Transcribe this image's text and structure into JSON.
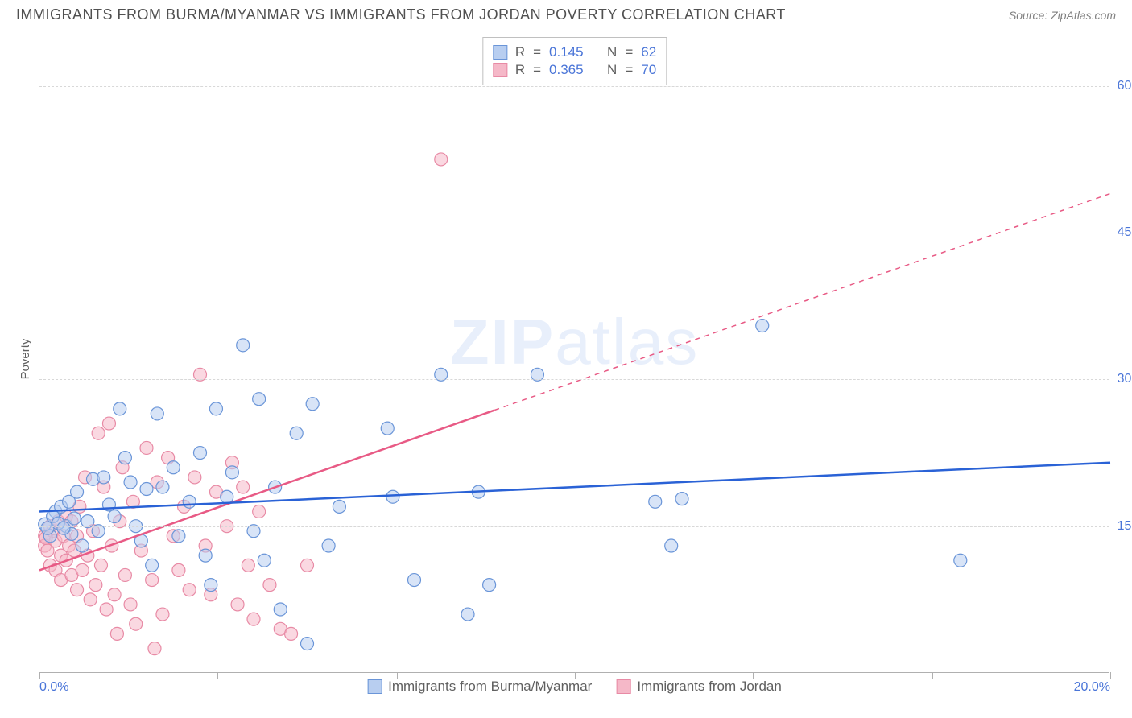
{
  "title": "IMMIGRANTS FROM BURMA/MYANMAR VS IMMIGRANTS FROM JORDAN POVERTY CORRELATION CHART",
  "source": "Source: ZipAtlas.com",
  "ylabel": "Poverty",
  "watermark_prefix": "ZIP",
  "watermark_suffix": "atlas",
  "chart": {
    "type": "scatter",
    "xlim": [
      0,
      20
    ],
    "ylim": [
      0,
      65
    ],
    "xticks": [
      0,
      3.33,
      6.67,
      10,
      13.33,
      16.67,
      20
    ],
    "yticks": [
      15,
      30,
      45,
      60
    ],
    "ytick_labels": [
      "15.0%",
      "30.0%",
      "45.0%",
      "60.0%"
    ],
    "xtick_labels_show": {
      "0": "0.0%",
      "20": "20.0%"
    },
    "background_color": "#ffffff",
    "grid_color": "#d8d8d8",
    "axis_color": "#b0b0b0",
    "tick_label_color": "#4a75d8",
    "marker_radius": 8,
    "marker_stroke_width": 1.2,
    "trend_line_width": 2.5,
    "series_a": {
      "label": "Immigrants from Burma/Myanmar",
      "fill": "#b8cef0",
      "fill_opacity": 0.55,
      "stroke": "#6a95d8",
      "R": "0.145",
      "N": "62",
      "trend": {
        "x1": 0,
        "y1": 16.5,
        "x2": 20,
        "y2": 21.5,
        "color": "#2a62d6",
        "dash_from_x": null
      },
      "points": [
        [
          0.1,
          15.2
        ],
        [
          0.2,
          14.0
        ],
        [
          0.3,
          16.5
        ],
        [
          0.4,
          17.0
        ],
        [
          0.5,
          15.0
        ],
        [
          0.6,
          14.2
        ],
        [
          0.7,
          18.5
        ],
        [
          0.8,
          13.0
        ],
        [
          1.0,
          19.8
        ],
        [
          1.1,
          14.5
        ],
        [
          1.2,
          20.0
        ],
        [
          1.3,
          17.2
        ],
        [
          1.5,
          27.0
        ],
        [
          1.6,
          22.0
        ],
        [
          1.7,
          19.5
        ],
        [
          1.8,
          15.0
        ],
        [
          2.0,
          18.8
        ],
        [
          2.1,
          11.0
        ],
        [
          2.2,
          26.5
        ],
        [
          2.3,
          19.0
        ],
        [
          2.5,
          21.0
        ],
        [
          2.6,
          14.0
        ],
        [
          2.8,
          17.5
        ],
        [
          3.0,
          22.5
        ],
        [
          3.1,
          12.0
        ],
        [
          3.2,
          9.0
        ],
        [
          3.3,
          27.0
        ],
        [
          3.5,
          18.0
        ],
        [
          3.6,
          20.5
        ],
        [
          3.8,
          33.5
        ],
        [
          4.0,
          14.5
        ],
        [
          4.1,
          28.0
        ],
        [
          4.2,
          11.5
        ],
        [
          4.4,
          19.0
        ],
        [
          4.5,
          6.5
        ],
        [
          4.8,
          24.5
        ],
        [
          5.0,
          3.0
        ],
        [
          5.1,
          27.5
        ],
        [
          5.4,
          13.0
        ],
        [
          5.6,
          17.0
        ],
        [
          6.5,
          25.0
        ],
        [
          6.6,
          18.0
        ],
        [
          7.0,
          9.5
        ],
        [
          7.5,
          30.5
        ],
        [
          8.0,
          6.0
        ],
        [
          8.2,
          18.5
        ],
        [
          8.4,
          9.0
        ],
        [
          9.3,
          30.5
        ],
        [
          11.5,
          17.5
        ],
        [
          11.8,
          13.0
        ],
        [
          12.0,
          17.8
        ],
        [
          13.5,
          35.5
        ],
        [
          17.2,
          11.5
        ],
        [
          0.15,
          14.8
        ],
        [
          0.25,
          16.0
        ],
        [
          0.35,
          15.3
        ],
        [
          0.45,
          14.8
        ],
        [
          0.55,
          17.5
        ],
        [
          0.9,
          15.5
        ],
        [
          1.4,
          16.0
        ],
        [
          1.9,
          13.5
        ],
        [
          0.65,
          15.8
        ]
      ]
    },
    "series_b": {
      "label": "Immigrants from Jordan",
      "fill": "#f5b8c8",
      "fill_opacity": 0.55,
      "stroke": "#e88aa5",
      "R": "0.365",
      "N": "70",
      "trend": {
        "x1": 0,
        "y1": 10.5,
        "x2": 20,
        "y2": 49.0,
        "color": "#e85a85",
        "dash_from_x": 8.5
      },
      "points": [
        [
          0.1,
          14.0
        ],
        [
          0.1,
          13.0
        ],
        [
          0.15,
          12.5
        ],
        [
          0.2,
          15.0
        ],
        [
          0.2,
          11.0
        ],
        [
          0.25,
          14.5
        ],
        [
          0.3,
          13.5
        ],
        [
          0.3,
          10.5
        ],
        [
          0.35,
          15.5
        ],
        [
          0.4,
          12.0
        ],
        [
          0.4,
          9.5
        ],
        [
          0.45,
          14.0
        ],
        [
          0.5,
          16.0
        ],
        [
          0.5,
          11.5
        ],
        [
          0.55,
          13.0
        ],
        [
          0.6,
          10.0
        ],
        [
          0.6,
          15.5
        ],
        [
          0.65,
          12.5
        ],
        [
          0.7,
          14.0
        ],
        [
          0.7,
          8.5
        ],
        [
          0.75,
          17.0
        ],
        [
          0.8,
          10.5
        ],
        [
          0.85,
          20.0
        ],
        [
          0.9,
          12.0
        ],
        [
          0.95,
          7.5
        ],
        [
          1.0,
          14.5
        ],
        [
          1.05,
          9.0
        ],
        [
          1.1,
          24.5
        ],
        [
          1.15,
          11.0
        ],
        [
          1.2,
          19.0
        ],
        [
          1.25,
          6.5
        ],
        [
          1.3,
          25.5
        ],
        [
          1.35,
          13.0
        ],
        [
          1.4,
          8.0
        ],
        [
          1.5,
          15.5
        ],
        [
          1.55,
          21.0
        ],
        [
          1.6,
          10.0
        ],
        [
          1.7,
          7.0
        ],
        [
          1.75,
          17.5
        ],
        [
          1.8,
          5.0
        ],
        [
          1.9,
          12.5
        ],
        [
          2.0,
          23.0
        ],
        [
          2.1,
          9.5
        ],
        [
          2.2,
          19.5
        ],
        [
          2.3,
          6.0
        ],
        [
          2.4,
          22.0
        ],
        [
          2.5,
          14.0
        ],
        [
          2.6,
          10.5
        ],
        [
          2.7,
          17.0
        ],
        [
          2.8,
          8.5
        ],
        [
          2.9,
          20.0
        ],
        [
          3.0,
          30.5
        ],
        [
          3.1,
          13.0
        ],
        [
          3.2,
          8.0
        ],
        [
          3.3,
          18.5
        ],
        [
          3.5,
          15.0
        ],
        [
          3.6,
          21.5
        ],
        [
          3.7,
          7.0
        ],
        [
          3.8,
          19.0
        ],
        [
          3.9,
          11.0
        ],
        [
          4.0,
          5.5
        ],
        [
          4.1,
          16.5
        ],
        [
          4.3,
          9.0
        ],
        [
          4.5,
          4.5
        ],
        [
          4.7,
          4.0
        ],
        [
          5.0,
          11.0
        ],
        [
          2.15,
          2.5
        ],
        [
          1.45,
          4.0
        ],
        [
          7.5,
          52.5
        ],
        [
          0.12,
          13.8
        ]
      ]
    }
  },
  "legend_labels": {
    "R": "R",
    "N": "N",
    "eq": "="
  }
}
